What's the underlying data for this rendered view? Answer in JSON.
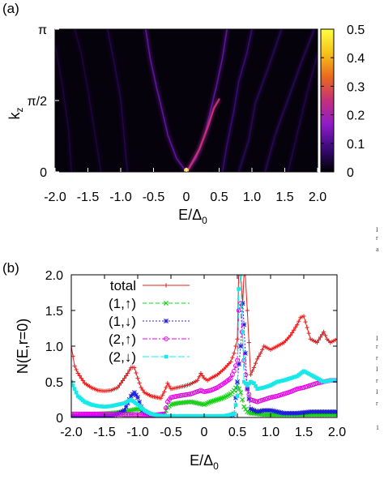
{
  "chart_data": [
    {
      "panel_label": "(a)",
      "type": "heatmap",
      "xlabel_main": "E/Δ",
      "xlabel_sub": "0",
      "ylabel_main": "k",
      "ylabel_sub": "z",
      "xlim": [
        -2.0,
        2.0
      ],
      "ylim": [
        0,
        3.1416
      ],
      "x_ticks": [
        "-2.0",
        "-1.5",
        "-1.0",
        "-0.5",
        "0",
        "0.5",
        "1.0",
        "1.5",
        "2.0"
      ],
      "y_ticks": [
        {
          "label": "0",
          "value": 0
        },
        {
          "label": "π/2",
          "value": 1.5708
        },
        {
          "label": "π",
          "value": 3.1416
        }
      ],
      "colorbar": {
        "range": [
          0,
          0.5
        ],
        "ticks": [
          "0",
          "0.1",
          "0.2",
          "0.3",
          "0.4",
          "0.5"
        ],
        "colors": [
          "#000000",
          "#3b0a7a",
          "#8e1cc8",
          "#c4307a",
          "#e96a1e",
          "#f6c21a",
          "#ffff40"
        ]
      },
      "ridges": [
        {
          "name": "bound-state-branch-left",
          "points": [
            [
              0.0,
              0.0
            ],
            [
              -0.15,
              0.3
            ],
            [
              -0.28,
              0.8
            ],
            [
              -0.36,
              1.3
            ],
            [
              -0.46,
              1.9
            ],
            [
              -0.55,
              2.5
            ],
            [
              -0.62,
              3.14
            ]
          ],
          "value": 0.12
        },
        {
          "name": "bound-state-branch-right",
          "points": [
            [
              0.0,
              0.0
            ],
            [
              0.15,
              0.3
            ],
            [
              0.28,
              0.8
            ],
            [
              0.36,
              1.3
            ],
            [
              0.46,
              1.9
            ],
            [
              0.55,
              2.5
            ],
            [
              0.62,
              3.14
            ]
          ],
          "value": 0.12
        },
        {
          "name": "bound-state-branch-right-strong",
          "points": [
            [
              0.03,
              0.05
            ],
            [
              0.2,
              0.5
            ],
            [
              0.33,
              1.0
            ],
            [
              0.42,
              1.4
            ],
            [
              0.5,
              1.6
            ]
          ],
          "value": 0.25
        },
        {
          "name": "continuum-right-1",
          "points": [
            [
              0.55,
              0.0
            ],
            [
              0.62,
              0.6
            ],
            [
              0.72,
              1.3
            ],
            [
              0.8,
              2.0
            ],
            [
              0.92,
              2.6
            ],
            [
              1.0,
              3.14
            ]
          ],
          "value": 0.08
        },
        {
          "name": "continuum-right-2",
          "points": [
            [
              0.8,
              0.0
            ],
            [
              0.95,
              0.7
            ],
            [
              1.05,
              1.5
            ],
            [
              1.25,
              2.3
            ],
            [
              1.45,
              3.14
            ]
          ],
          "value": 0.06
        },
        {
          "name": "continuum-right-3",
          "points": [
            [
              1.2,
              0.0
            ],
            [
              1.35,
              0.8
            ],
            [
              1.55,
              1.6
            ],
            [
              1.75,
              2.4
            ],
            [
              1.95,
              3.14
            ]
          ],
          "value": 0.06
        },
        {
          "name": "continuum-right-4",
          "points": [
            [
              1.55,
              0.0
            ],
            [
              1.7,
              0.9
            ],
            [
              1.85,
              1.8
            ],
            [
              2.0,
              2.6
            ]
          ],
          "value": 0.05
        },
        {
          "name": "continuum-left-1",
          "points": [
            [
              -0.9,
              0.0
            ],
            [
              -0.95,
              0.8
            ],
            [
              -1.0,
              1.6
            ],
            [
              -1.1,
              2.4
            ],
            [
              -1.2,
              3.14
            ]
          ],
          "value": 0.05
        },
        {
          "name": "continuum-left-2",
          "points": [
            [
              -1.3,
              0.0
            ],
            [
              -1.4,
              0.9
            ],
            [
              -1.5,
              1.8
            ],
            [
              -1.6,
              2.6
            ],
            [
              -1.7,
              3.14
            ]
          ],
          "value": 0.04
        },
        {
          "name": "continuum-left-3",
          "points": [
            [
              -1.75,
              0.0
            ],
            [
              -1.8,
              1.0
            ],
            [
              -1.9,
              2.0
            ],
            [
              -2.0,
              2.8
            ]
          ],
          "value": 0.04
        }
      ],
      "peak_point": [
        0.0,
        0.0
      ]
    },
    {
      "panel_label": "(b)",
      "type": "line",
      "xlabel_main": "E/Δ",
      "xlabel_sub": "0",
      "ylabel": "N(E,r=0)",
      "xlim": [
        -2.0,
        2.0
      ],
      "ylim": [
        0,
        2.0
      ],
      "x_ticks": [
        "-2.0",
        "-1.5",
        "-1.0",
        "-0.5",
        "0",
        "0.5",
        "1.0",
        "1.5",
        "2.0"
      ],
      "y_ticks": [
        "0",
        "0.5",
        "1.0",
        "1.5",
        "2.0"
      ],
      "legend": [
        {
          "label": "total",
          "color": "#e81c1c",
          "marker": "+",
          "dash": ""
        },
        {
          "label": "(1,↑)",
          "color": "#19d119",
          "marker": "x",
          "dash": "5,3"
        },
        {
          "label": "(1,↓)",
          "color": "#1f1fd9",
          "marker": "*",
          "dash": "2,2"
        },
        {
          "label": "(2,↑)",
          "color": "#e600e6",
          "marker": "o",
          "dash": "6,2,2,2"
        },
        {
          "label": "(2,↓)",
          "color": "#18e8e8",
          "marker": "s",
          "dash": "8,3"
        }
      ],
      "series": [
        {
          "name": "total",
          "x": [
            -2.0,
            -1.95,
            -1.9,
            -1.8,
            -1.7,
            -1.6,
            -1.5,
            -1.4,
            -1.3,
            -1.2,
            -1.15,
            -1.1,
            -1.05,
            -1.0,
            -0.95,
            -0.9,
            -0.8,
            -0.7,
            -0.65,
            -0.6,
            -0.55,
            -0.5,
            -0.4,
            -0.3,
            -0.2,
            -0.1,
            -0.05,
            0.0,
            0.05,
            0.1,
            0.2,
            0.3,
            0.4,
            0.45,
            0.5,
            0.52,
            0.55,
            0.58,
            0.6,
            0.62,
            0.65,
            0.7,
            0.75,
            0.8,
            0.85,
            0.9,
            1.0,
            1.1,
            1.2,
            1.3,
            1.4,
            1.45,
            1.5,
            1.6,
            1.7,
            1.8,
            1.85,
            1.9,
            2.0
          ],
          "y": [
            1.0,
            0.72,
            0.62,
            0.48,
            0.42,
            0.38,
            0.37,
            0.38,
            0.42,
            0.55,
            0.62,
            0.7,
            0.7,
            0.55,
            0.42,
            0.35,
            0.3,
            0.28,
            0.27,
            0.36,
            0.48,
            0.4,
            0.42,
            0.44,
            0.47,
            0.52,
            0.62,
            0.55,
            0.52,
            0.55,
            0.6,
            0.68,
            0.78,
            0.9,
            1.1,
            2.0,
            2.0,
            1.6,
            2.0,
            2.0,
            1.5,
            0.6,
            0.7,
            0.82,
            0.9,
            1.0,
            0.95,
            1.0,
            1.05,
            1.15,
            1.3,
            1.4,
            1.42,
            1.1,
            1.05,
            1.2,
            1.1,
            1.05,
            1.1
          ]
        },
        {
          "name": "(1,↑)",
          "x": [
            -2.0,
            -1.8,
            -1.6,
            -1.4,
            -1.2,
            -1.1,
            -1.0,
            -0.9,
            -0.7,
            -0.6,
            -0.55,
            -0.5,
            -0.4,
            -0.2,
            -0.1,
            0.0,
            0.1,
            0.2,
            0.3,
            0.4,
            0.45,
            0.5,
            0.55,
            0.6,
            0.65,
            0.7,
            0.8,
            0.9,
            1.0,
            1.2,
            1.4,
            1.6,
            1.8,
            2.0
          ],
          "y": [
            0.03,
            0.04,
            0.05,
            0.06,
            0.08,
            0.1,
            0.12,
            0.06,
            0.03,
            0.05,
            0.14,
            0.18,
            0.2,
            0.22,
            0.2,
            0.18,
            0.22,
            0.25,
            0.28,
            0.33,
            0.38,
            0.45,
            0.35,
            0.15,
            0.08,
            0.06,
            0.05,
            0.04,
            0.04,
            0.04,
            0.04,
            0.04,
            0.04,
            0.04
          ]
        },
        {
          "name": "(1,↓)",
          "x": [
            -2.0,
            -1.8,
            -1.6,
            -1.4,
            -1.3,
            -1.2,
            -1.15,
            -1.1,
            -1.05,
            -1.0,
            -0.95,
            -0.9,
            -0.7,
            -0.5,
            -0.2,
            0.0,
            0.2,
            0.4,
            0.45,
            0.5,
            0.55,
            0.58,
            0.6,
            0.62,
            0.65,
            0.7,
            0.8,
            0.9,
            1.0,
            1.2,
            1.4,
            1.6,
            1.8,
            2.0
          ],
          "y": [
            0.01,
            0.01,
            0.01,
            0.02,
            0.05,
            0.1,
            0.2,
            0.3,
            0.35,
            0.28,
            0.15,
            0.05,
            0.02,
            0.01,
            0.01,
            0.01,
            0.01,
            0.02,
            0.05,
            0.5,
            1.0,
            1.6,
            1.3,
            0.9,
            0.4,
            0.12,
            0.08,
            0.1,
            0.1,
            0.06,
            0.06,
            0.08,
            0.08,
            0.08
          ]
        },
        {
          "name": "(2,↑)",
          "x": [
            -2.0,
            -1.8,
            -1.6,
            -1.4,
            -1.2,
            -1.0,
            -0.8,
            -0.6,
            -0.55,
            -0.5,
            -0.4,
            -0.2,
            -0.05,
            0.0,
            0.1,
            0.2,
            0.3,
            0.4,
            0.45,
            0.5,
            0.52,
            0.55,
            0.57,
            0.6,
            0.65,
            0.7,
            0.8,
            0.9,
            1.0,
            1.1,
            1.2,
            1.3,
            1.4,
            1.5,
            1.6,
            1.7,
            1.8,
            1.9,
            2.0
          ],
          "y": [
            0.05,
            0.05,
            0.05,
            0.05,
            0.04,
            0.04,
            0.03,
            0.05,
            0.22,
            0.28,
            0.3,
            0.33,
            0.38,
            0.36,
            0.38,
            0.42,
            0.48,
            0.55,
            0.65,
            0.8,
            1.5,
            1.6,
            1.2,
            0.8,
            0.4,
            0.25,
            0.22,
            0.25,
            0.28,
            0.3,
            0.33,
            0.36,
            0.4,
            0.42,
            0.45,
            0.48,
            0.5,
            0.52,
            0.52
          ]
        },
        {
          "name": "(2,↓)",
          "x": [
            -2.0,
            -1.95,
            -1.9,
            -1.8,
            -1.7,
            -1.6,
            -1.5,
            -1.4,
            -1.3,
            -1.2,
            -1.1,
            -1.0,
            -0.9,
            -0.8,
            -0.7,
            -0.6,
            -0.5,
            -0.3,
            0.0,
            0.3,
            0.45,
            0.5,
            0.52,
            0.55,
            0.58,
            0.6,
            0.65,
            0.7,
            0.75,
            0.8,
            0.9,
            1.0,
            1.1,
            1.2,
            1.3,
            1.4,
            1.5,
            1.6,
            1.7,
            1.8,
            1.9,
            2.0
          ],
          "y": [
            0.5,
            0.4,
            0.3,
            0.22,
            0.18,
            0.16,
            0.15,
            0.16,
            0.18,
            0.2,
            0.25,
            0.18,
            0.1,
            0.05,
            0.03,
            0.02,
            0.02,
            0.02,
            0.02,
            0.02,
            0.05,
            0.3,
            1.8,
            2.0,
            1.2,
            0.5,
            0.45,
            0.5,
            0.48,
            0.4,
            0.42,
            0.45,
            0.5,
            0.52,
            0.55,
            0.58,
            0.65,
            0.6,
            0.55,
            0.5,
            0.52,
            0.52
          ]
        }
      ]
    }
  ],
  "margin_text": {
    "chars": [
      "I",
      "r",
      "a",
      "I",
      "r",
      "r",
      "I",
      "r",
      "I",
      "r",
      "1"
    ]
  }
}
